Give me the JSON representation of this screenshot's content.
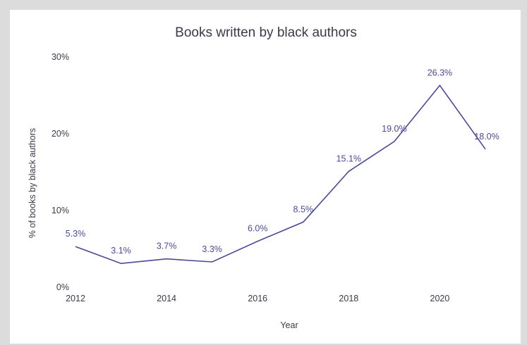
{
  "chart_data": {
    "type": "line",
    "title": "Books written by black authors",
    "xlabel": "Year",
    "ylabel": "% of books by black authors",
    "x": [
      2012,
      2013,
      2014,
      2015,
      2016,
      2017,
      2018,
      2019,
      2020,
      2021
    ],
    "series": [
      {
        "values": [
          5.3,
          3.1,
          3.7,
          3.3,
          6.0,
          8.5,
          15.1,
          19.0,
          26.3,
          18.0
        ],
        "labels": [
          "5.3%",
          "3.1%",
          "3.7%",
          "3.3%",
          "6.0%",
          "8.5%",
          "15.1%",
          "19.0%",
          "26.3%",
          "18.0%"
        ],
        "color": "#4a4a9c"
      }
    ],
    "xticks": [
      "2012",
      "2014",
      "2016",
      "2018",
      "2020"
    ],
    "xtick_values": [
      2012,
      2014,
      2016,
      2018,
      2020
    ],
    "yticks": [
      "0%",
      "10%",
      "20%",
      "30%"
    ],
    "ytick_values": [
      0,
      10,
      20,
      30
    ],
    "ylim": [
      0,
      30
    ],
    "xlim": [
      2012,
      2021
    ],
    "grid": false,
    "legend": "none"
  }
}
